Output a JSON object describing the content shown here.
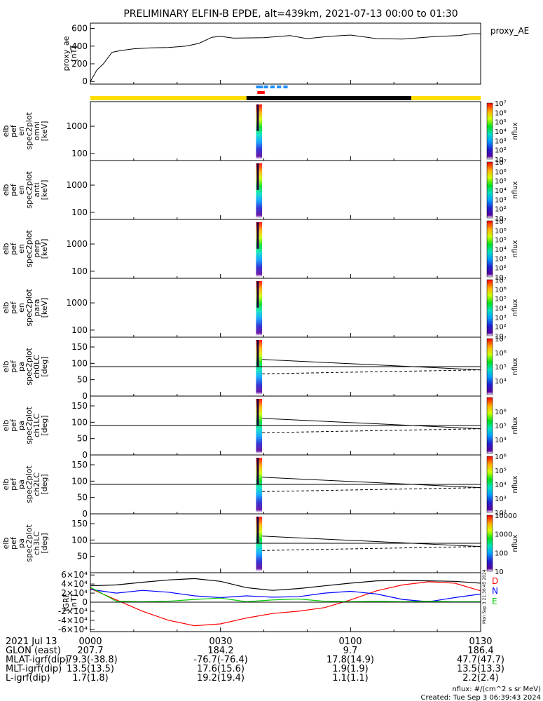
{
  "title": "PRELIMINARY ELFIN-B EPDE, alt=439km, 2021-07-13 00:00 to 01:30",
  "footer": {
    "units_note": "nflux: #/(cm^2 s sr MeV)",
    "created": "Created: Tue Sep  3 06:39:43 2024",
    "vertical_stamp": "Mon Sep  3 21:36:45 2024"
  },
  "orbit_table": {
    "row_labels": [
      "2021 Jul 13",
      "GLON (east)",
      "MLAT-igrf(dip)",
      "MLT-igrf(dip)",
      "L-igrf(dip)"
    ],
    "columns": [
      {
        "time": "0000",
        "values": [
          "207.7",
          "-79.3(-38.8)",
          "13.5(13.5)",
          "1.7(1.8)"
        ]
      },
      {
        "time": "0030",
        "values": [
          "184.2",
          "-76.7(-76.4)",
          "17.6(15.6)",
          "19.2(19.4)"
        ]
      },
      {
        "time": "0100",
        "values": [
          "9.7",
          "17.8(14.9)",
          "1.9(1.9)",
          "1.1(1.1)"
        ]
      },
      {
        "time": "0130",
        "values": [
          "186.4",
          "47.7(47.7)",
          "13.5(13.3)",
          "2.2(2.4)"
        ]
      }
    ]
  },
  "chart_data": [
    {
      "type": "line",
      "panel": "proxy_ae",
      "ylabel_lines": [
        "proxy_ae",
        "[nT]"
      ],
      "legend": "proxy_AE",
      "ylim": [
        -30,
        660
      ],
      "yticks": [
        "0",
        "200",
        "400",
        "600"
      ],
      "x_minutes": [
        0,
        1.5,
        3,
        5,
        7,
        10,
        14,
        18,
        22,
        25,
        28,
        30,
        33,
        40,
        46,
        50,
        55,
        60,
        66,
        72,
        80,
        85,
        88,
        90
      ],
      "values": [
        0,
        130,
        200,
        330,
        350,
        370,
        380,
        385,
        400,
        430,
        500,
        510,
        490,
        495,
        520,
        485,
        510,
        525,
        485,
        480,
        510,
        520,
        540,
        540
      ]
    },
    {
      "type": "heatmap",
      "panel": "omni",
      "ylabel_lines": [
        "elb",
        "pef",
        "en",
        "spec2plot",
        "omni",
        "[keV]"
      ],
      "yscale": "log",
      "ylim": [
        55,
        8000
      ],
      "yticks": [
        "100",
        "1000"
      ],
      "colorbar": {
        "label": "nflux",
        "scale": "log",
        "range": [
          10,
          10000000
        ],
        "ticks": [
          "10",
          "10²",
          "10³",
          "10⁴",
          "10⁵",
          "10⁶",
          "10⁷"
        ]
      }
    },
    {
      "type": "heatmap",
      "panel": "anti",
      "ylabel_lines": [
        "elb",
        "pef",
        "en",
        "spec2plot",
        "anti",
        "[keV]"
      ],
      "yscale": "log",
      "ylim": [
        55,
        8000
      ],
      "yticks": [
        "100",
        "1000"
      ],
      "colorbar": {
        "label": "nflux",
        "scale": "log",
        "range": [
          10,
          10000000
        ],
        "ticks": [
          "10",
          "10²",
          "10³",
          "10⁴",
          "10⁵",
          "10⁶",
          "10⁷"
        ]
      }
    },
    {
      "type": "heatmap",
      "panel": "perp",
      "ylabel_lines": [
        "elb",
        "pef",
        "en",
        "spec2plot",
        "perp",
        "[keV]"
      ],
      "yscale": "log",
      "ylim": [
        55,
        8000
      ],
      "yticks": [
        "100",
        "1000"
      ],
      "colorbar": {
        "label": "nflux",
        "scale": "log",
        "range": [
          10,
          10000000
        ],
        "ticks": [
          "10",
          "10²",
          "10³",
          "10⁴",
          "10⁵",
          "10⁶",
          "10⁷"
        ]
      }
    },
    {
      "type": "heatmap",
      "panel": "para",
      "ylabel_lines": [
        "elb",
        "pef",
        "en",
        "spec2plot",
        "para",
        "[keV]"
      ],
      "yscale": "log",
      "ylim": [
        55,
        8000
      ],
      "yticks": [
        "100",
        "1000"
      ],
      "colorbar": {
        "label": "nflux",
        "scale": "log",
        "range": [
          10,
          10000000
        ],
        "ticks": [
          "10",
          "10²",
          "10³",
          "10⁴",
          "10⁵",
          "10⁶",
          "10⁷"
        ]
      }
    },
    {
      "type": "heatmap",
      "panel": "ch0LC",
      "ylabel_lines": [
        "elb",
        "pef",
        "pa",
        "spec2plot",
        "ch0LC",
        "[deg]"
      ],
      "ylim": [
        0,
        180
      ],
      "yticks": [
        "0",
        "50",
        "100",
        "150"
      ],
      "colorbar": {
        "label": "nflux",
        "scale": "log",
        "range": [
          1000,
          10000000
        ],
        "ticks": [
          "10⁴",
          "10⁵",
          "10⁶",
          "10⁷"
        ]
      }
    },
    {
      "type": "heatmap",
      "panel": "ch1LC",
      "ylabel_lines": [
        "elb",
        "pef",
        "pa",
        "spec2plot",
        "ch1LC",
        "[deg]"
      ],
      "ylim": [
        0,
        180
      ],
      "yticks": [
        "0",
        "50",
        "100",
        "150"
      ],
      "colorbar": {
        "label": "nflux",
        "scale": "log",
        "range": [
          1000,
          10000000
        ],
        "ticks": [
          "10⁴",
          "10⁵",
          "10⁶"
        ]
      }
    },
    {
      "type": "heatmap",
      "panel": "ch2LC",
      "ylabel_lines": [
        "elb",
        "pef",
        "pa",
        "spec2plot",
        "ch2LC",
        "[deg]"
      ],
      "ylim": [
        0,
        180
      ],
      "yticks": [
        "0",
        "50",
        "100",
        "150"
      ],
      "colorbar": {
        "label": "nflux",
        "scale": "log",
        "range": [
          100,
          1000000
        ],
        "ticks": [
          "10²",
          "10³",
          "10⁴",
          "10⁵",
          "10⁶"
        ]
      }
    },
    {
      "type": "heatmap",
      "panel": "ch3LC",
      "ylabel_lines": [
        "elb",
        "pef",
        "pa",
        "spec2plot",
        "ch3LC",
        "[deg]"
      ],
      "ylim": [
        0,
        180
      ],
      "yticks": [
        "50",
        "100",
        "150"
      ],
      "colorbar": {
        "label": "nflux",
        "scale": "log",
        "range": [
          10,
          10000
        ],
        "ticks": [
          "10",
          "100",
          "1000",
          "10000"
        ]
      }
    },
    {
      "type": "line",
      "panel": "igrf",
      "ylabel_lines": [
        "IGRF",
        "[nT]"
      ],
      "ylim": [
        -65000,
        65000
      ],
      "yticks": [
        "-6×10⁴",
        "-4×10⁴",
        "-2×10⁴",
        "0",
        "2×10⁴",
        "4×10⁴",
        "6×10⁴"
      ],
      "x_minutes": [
        0,
        6,
        12,
        18,
        24,
        30,
        36,
        42,
        48,
        54,
        60,
        66,
        72,
        78,
        84,
        90
      ],
      "series": [
        {
          "name": "D",
          "color": "#ff0000",
          "values": [
            30000,
            5000,
            -20000,
            -40000,
            -52000,
            -48000,
            -35000,
            -25000,
            -20000,
            -12000,
            5000,
            25000,
            38000,
            45000,
            42000,
            25000
          ]
        },
        {
          "name": "N",
          "color": "#0000ff",
          "values": [
            28000,
            20000,
            26000,
            22000,
            14000,
            10000,
            14000,
            11000,
            12000,
            20000,
            24000,
            18000,
            6000,
            1000,
            10000,
            18000
          ]
        },
        {
          "name": "E",
          "color": "#00cc00",
          "values": [
            33000,
            2000,
            1000,
            2000,
            6000,
            9000,
            1000,
            5000,
            7000,
            2000,
            1000,
            2000,
            1000,
            2000,
            1000,
            1000
          ]
        },
        {
          "name": "",
          "color": "#000000",
          "values": [
            36000,
            38000,
            44000,
            49000,
            52000,
            46000,
            32000,
            26000,
            30000,
            36000,
            42000,
            47000,
            48000,
            47000,
            46000,
            42000
          ]
        }
      ]
    }
  ],
  "x_axis": {
    "range_minutes": [
      0,
      90
    ],
    "ticks": [
      "0000",
      "0030",
      "0100",
      "0130"
    ]
  },
  "markers": {
    "conjunction_bar_colors": [
      "#ffdd00",
      "#000000",
      "#ffdd00"
    ]
  }
}
